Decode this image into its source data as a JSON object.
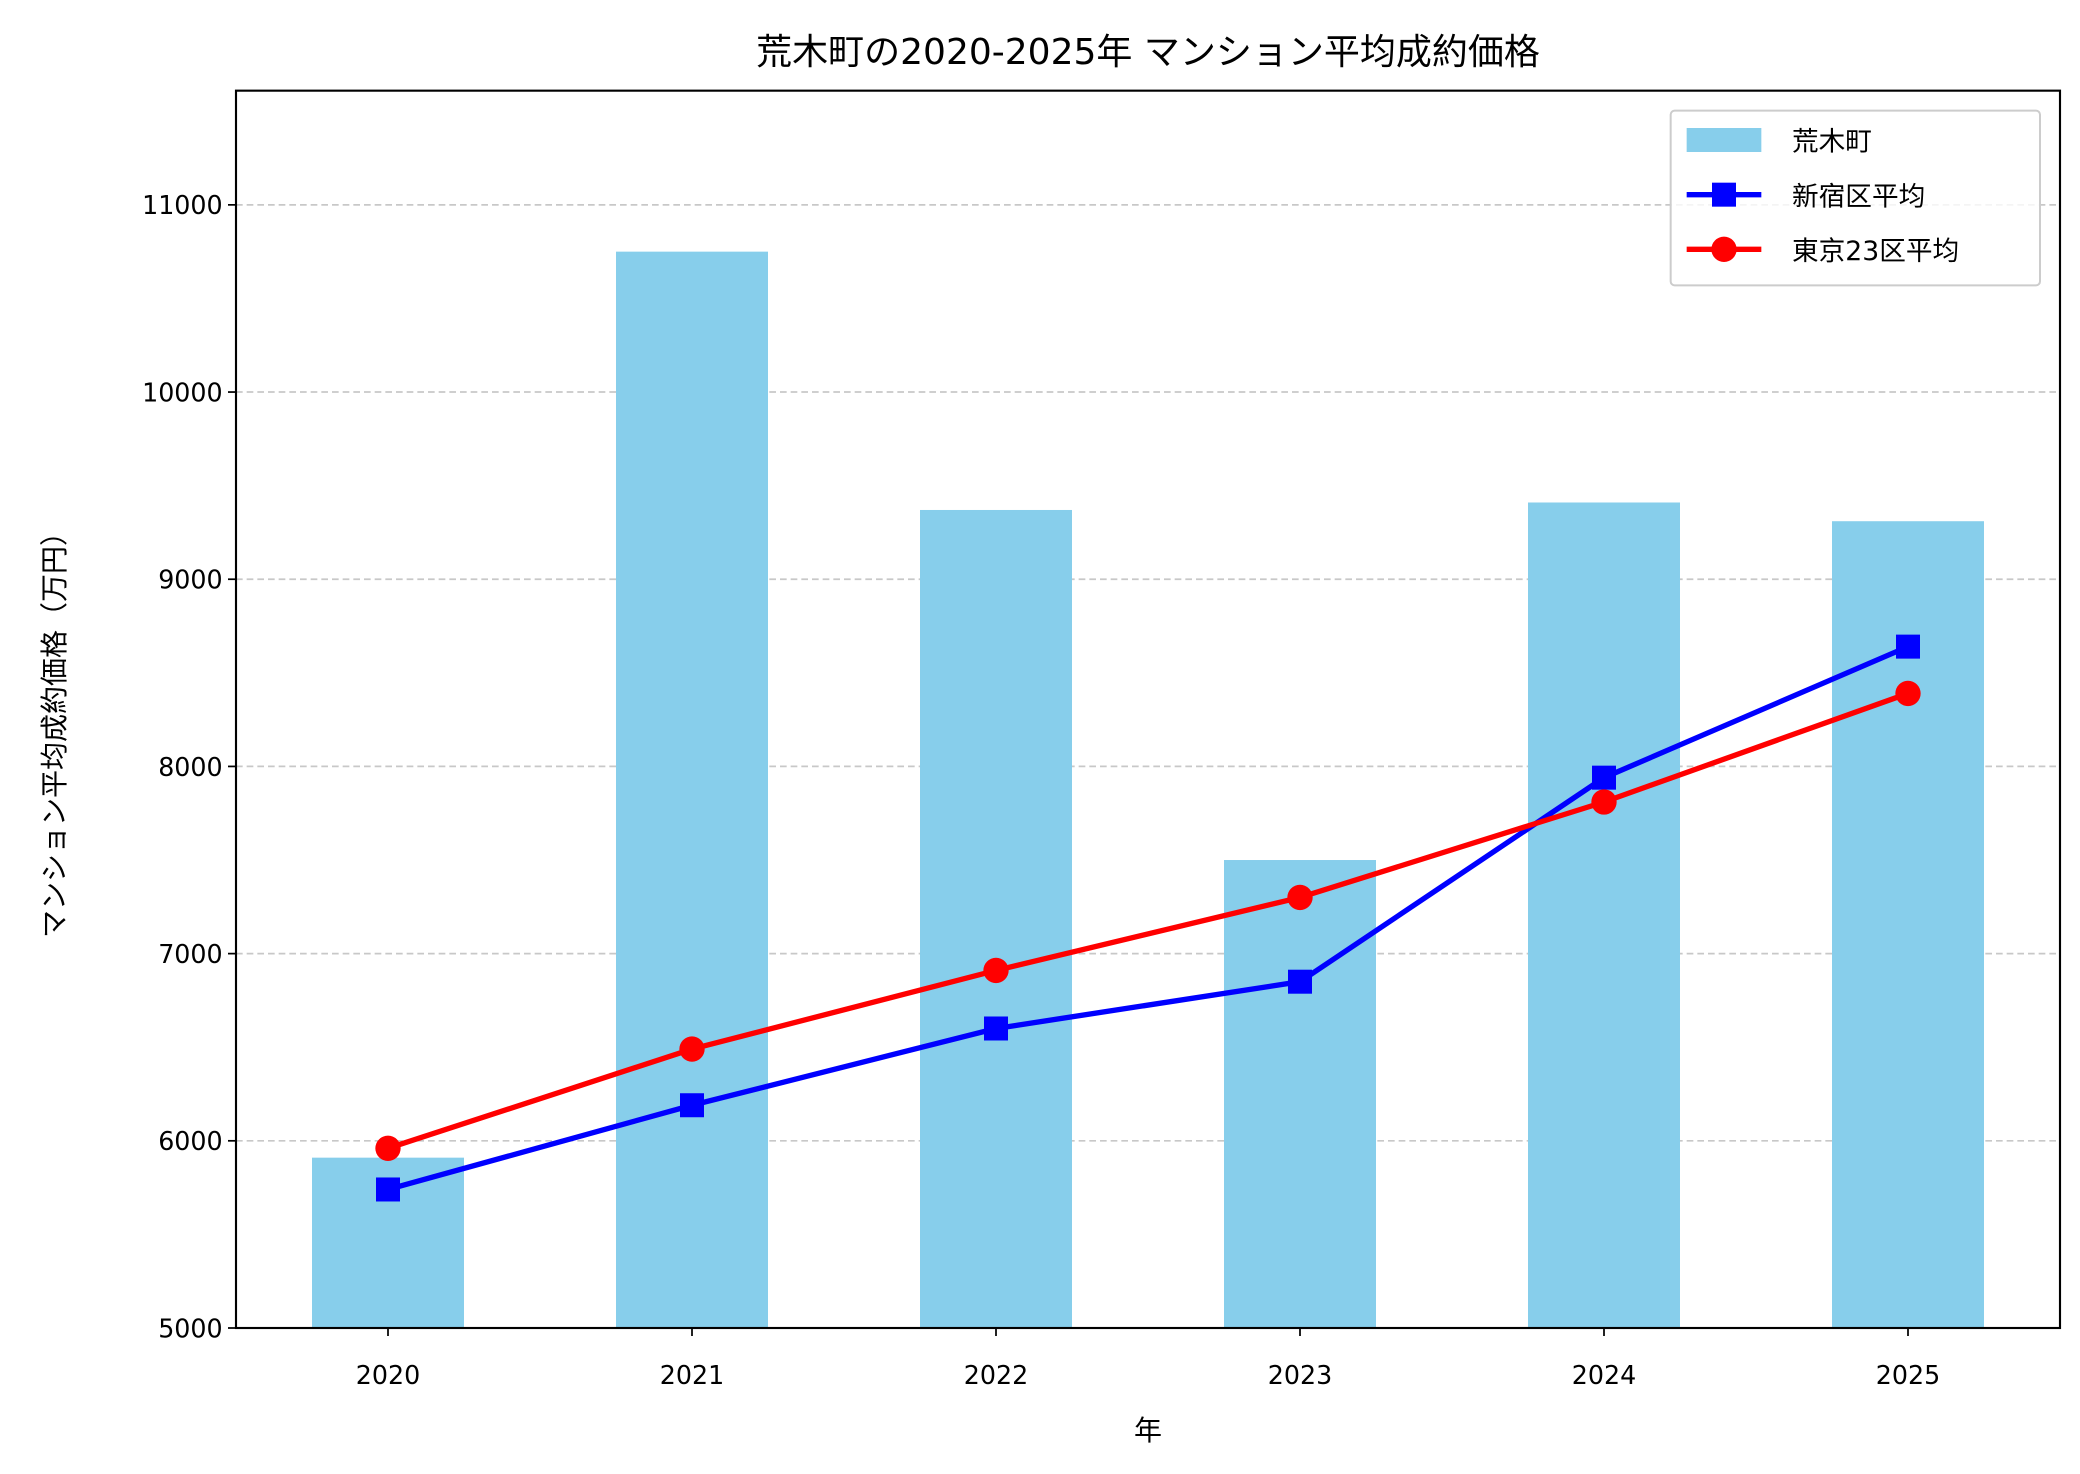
{
  "chart_data": {
    "type": "bar",
    "title": "荒木町の2020-2025年 マンション平均成約価格",
    "xlabel": "年",
    "ylabel": "マンション平均成約価格（万円）",
    "categories": [
      "2020",
      "2021",
      "2022",
      "2023",
      "2024",
      "2025"
    ],
    "ylim": [
      5000,
      11610
    ],
    "yticks": [
      5000,
      6000,
      7000,
      8000,
      9000,
      10000,
      11000
    ],
    "grid": "y dashed",
    "legend_position": "top-right",
    "series": [
      {
        "name": "荒木町",
        "kind": "bar",
        "color": "#87CEEB",
        "values": [
          5910,
          10750,
          9370,
          7500,
          9410,
          9310
        ]
      },
      {
        "name": "新宿区平均",
        "kind": "line",
        "marker": "square",
        "color": "#0000FF",
        "values": [
          5740,
          6190,
          6600,
          6850,
          7940,
          8640
        ]
      },
      {
        "name": "東京23区平均",
        "kind": "line",
        "marker": "circle",
        "color": "#FF0000",
        "values": [
          5960,
          6490,
          6910,
          7300,
          7810,
          8390
        ]
      }
    ]
  }
}
